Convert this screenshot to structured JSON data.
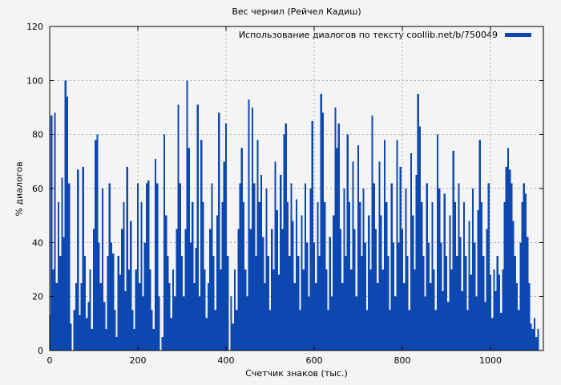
{
  "page": {
    "background": "#f4f4f4"
  },
  "chart_data": {
    "type": "bar",
    "title": "Вес чернил (Рейчел Кадиш)",
    "legend_label": "Использование диалогов по тексту coollib.net/b/750049",
    "xlabel": "Счетчик знаков (тыс.)",
    "ylabel": "% диалогов",
    "xlim": [
      0,
      1120
    ],
    "ylim": [
      0,
      120
    ],
    "x_ticks": [
      0,
      200,
      400,
      600,
      800,
      1000
    ],
    "y_ticks": [
      0,
      20,
      40,
      60,
      80,
      100,
      120
    ],
    "grid": true,
    "legend_position": "top-right-inside",
    "bar_color": "#0d47b0",
    "grid_color": "#a8a8a8",
    "axis_color": "#000000",
    "x_start": 0,
    "x_step": 4,
    "values": [
      13,
      87,
      30,
      88,
      25,
      55,
      35,
      64,
      42,
      100,
      94,
      62,
      10,
      0,
      15,
      25,
      67,
      13,
      25,
      68,
      35,
      12,
      18,
      30,
      8,
      45,
      78,
      80,
      40,
      25,
      60,
      18,
      8,
      35,
      62,
      40,
      36,
      15,
      5,
      35,
      28,
      45,
      55,
      22,
      68,
      30,
      48,
      15,
      8,
      30,
      62,
      25,
      55,
      20,
      40,
      62,
      63,
      30,
      15,
      8,
      71,
      62,
      20,
      0,
      5,
      80,
      50,
      35,
      25,
      12,
      30,
      20,
      45,
      91,
      62,
      35,
      20,
      45,
      100,
      75,
      40,
      55,
      25,
      38,
      91,
      20,
      78,
      55,
      30,
      12,
      25,
      45,
      62,
      35,
      15,
      50,
      88,
      30,
      55,
      70,
      84,
      35,
      0,
      20,
      10,
      30,
      15,
      45,
      62,
      75,
      55,
      30,
      20,
      93,
      45,
      90,
      62,
      35,
      78,
      55,
      65,
      42,
      25,
      60,
      35,
      15,
      45,
      30,
      70,
      52,
      28,
      65,
      45,
      80,
      84,
      55,
      35,
      62,
      48,
      25,
      56,
      35,
      15,
      50,
      30,
      62,
      40,
      20,
      60,
      85,
      40,
      25,
      55,
      35,
      95,
      88,
      55,
      30,
      15,
      42,
      20,
      50,
      90,
      75,
      84,
      45,
      25,
      60,
      35,
      80,
      55,
      30,
      70,
      45,
      20,
      76,
      55,
      35,
      60,
      40,
      15,
      50,
      30,
      87,
      62,
      45,
      25,
      70,
      50,
      30,
      78,
      55,
      35,
      15,
      62,
      40,
      20,
      78,
      40,
      68,
      45,
      25,
      60,
      35,
      15,
      73,
      50,
      30,
      65,
      95,
      83,
      55,
      35,
      20,
      62,
      40,
      25,
      55,
      30,
      15,
      80,
      60,
      40,
      22,
      58,
      35,
      18,
      50,
      30,
      74,
      55,
      35,
      62,
      42,
      22,
      55,
      35,
      15,
      48,
      28,
      60,
      40,
      20,
      52,
      78,
      55,
      35,
      18,
      45,
      62,
      28,
      12,
      30,
      22,
      35,
      28,
      14,
      30,
      55,
      68,
      75,
      67,
      62,
      48,
      35,
      25,
      15,
      40,
      55,
      62,
      58,
      42,
      25,
      10,
      8,
      12,
      5,
      8
    ]
  }
}
